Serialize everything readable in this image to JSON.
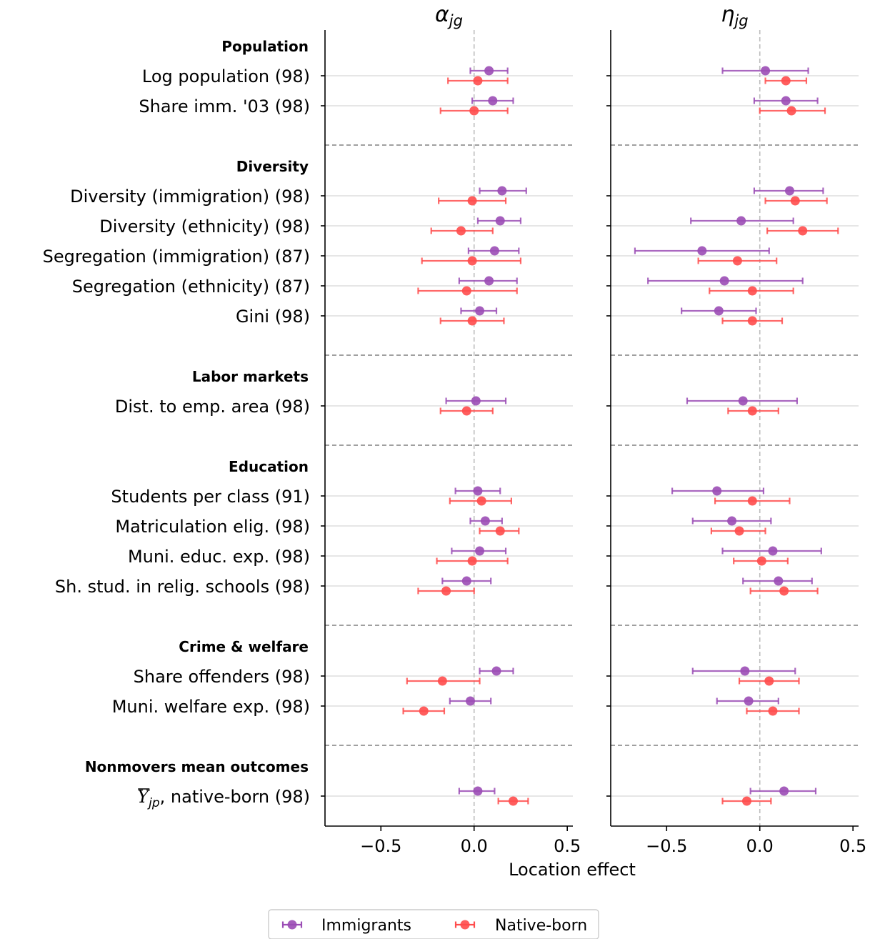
{
  "chart_data": {
    "type": "scatter",
    "subtype": "dot-and-whisker",
    "xlabel": "Location effect",
    "xlim": [
      -0.8,
      0.53
    ],
    "xticks": [
      -0.5,
      0.0,
      0.5
    ],
    "xtick_labels": [
      "−0.5",
      "0.0",
      "0.5"
    ],
    "reference_line_x": 0.0,
    "grid": "horizontal row lines",
    "legend_placement": "bottom-center",
    "panels": [
      {
        "title_base": "α",
        "title_sub": "jg"
      },
      {
        "title_base": "η",
        "title_sub": "jg"
      }
    ],
    "series": [
      {
        "name": "Immigrants",
        "color": "#9b4db5"
      },
      {
        "name": "Native-born",
        "color": "#ff4d4d"
      }
    ],
    "groups": [
      {
        "name": "Population",
        "rows": [
          {
            "label": "Log population (98)",
            "values": [
              [
                [
                  0.08,
                  -0.02,
                  0.18
                ],
                [
                  0.02,
                  -0.14,
                  0.18
                ]
              ],
              [
                [
                  0.03,
                  -0.2,
                  0.26
                ],
                [
                  0.14,
                  0.03,
                  0.25
                ]
              ]
            ]
          },
          {
            "label": "Share imm. '03 (98)",
            "values": [
              [
                [
                  0.1,
                  -0.01,
                  0.21
                ],
                [
                  0.0,
                  -0.18,
                  0.18
                ]
              ],
              [
                [
                  0.14,
                  -0.03,
                  0.31
                ],
                [
                  0.17,
                  0.0,
                  0.35
                ]
              ]
            ]
          }
        ]
      },
      {
        "name": "Diversity",
        "rows": [
          {
            "label": "Diversity (immigration) (98)",
            "values": [
              [
                [
                  0.15,
                  0.03,
                  0.28
                ],
                [
                  -0.01,
                  -0.19,
                  0.17
                ]
              ],
              [
                [
                  0.16,
                  -0.03,
                  0.34
                ],
                [
                  0.19,
                  0.03,
                  0.36
                ]
              ]
            ]
          },
          {
            "label": "Diversity (ethnicity) (98)",
            "values": [
              [
                [
                  0.14,
                  0.02,
                  0.25
                ],
                [
                  -0.07,
                  -0.23,
                  0.1
                ]
              ],
              [
                [
                  -0.1,
                  -0.37,
                  0.18
                ],
                [
                  0.23,
                  0.04,
                  0.42
                ]
              ]
            ]
          },
          {
            "label": "Segregation (immigration) (87)",
            "values": [
              [
                [
                  0.11,
                  -0.03,
                  0.24
                ],
                [
                  -0.01,
                  -0.28,
                  0.25
                ]
              ],
              [
                [
                  -0.31,
                  -0.67,
                  0.05
                ],
                [
                  -0.12,
                  -0.33,
                  0.09
                ]
              ]
            ]
          },
          {
            "label": "Segregation (ethnicity) (87)",
            "values": [
              [
                [
                  0.08,
                  -0.08,
                  0.23
                ],
                [
                  -0.04,
                  -0.3,
                  0.23
                ]
              ],
              [
                [
                  -0.19,
                  -0.6,
                  0.23
                ],
                [
                  -0.04,
                  -0.27,
                  0.18
                ]
              ]
            ]
          },
          {
            "label": "Gini (98)",
            "values": [
              [
                [
                  0.03,
                  -0.07,
                  0.12
                ],
                [
                  -0.01,
                  -0.18,
                  0.16
                ]
              ],
              [
                [
                  -0.22,
                  -0.42,
                  -0.02
                ],
                [
                  -0.04,
                  -0.2,
                  0.12
                ]
              ]
            ]
          }
        ]
      },
      {
        "name": "Labor markets",
        "rows": [
          {
            "label": "Dist. to emp. area (98)",
            "values": [
              [
                [
                  0.01,
                  -0.15,
                  0.17
                ],
                [
                  -0.04,
                  -0.18,
                  0.1
                ]
              ],
              [
                [
                  -0.09,
                  -0.39,
                  0.2
                ],
                [
                  -0.04,
                  -0.17,
                  0.1
                ]
              ]
            ]
          }
        ]
      },
      {
        "name": "Education",
        "rows": [
          {
            "label": "Students per class (91)",
            "values": [
              [
                [
                  0.02,
                  -0.1,
                  0.14
                ],
                [
                  0.04,
                  -0.13,
                  0.2
                ]
              ],
              [
                [
                  -0.23,
                  -0.47,
                  0.02
                ],
                [
                  -0.04,
                  -0.24,
                  0.16
                ]
              ]
            ]
          },
          {
            "label": "Matriculation elig. (98)",
            "values": [
              [
                [
                  0.06,
                  -0.02,
                  0.15
                ],
                [
                  0.14,
                  0.03,
                  0.24
                ]
              ],
              [
                [
                  -0.15,
                  -0.36,
                  0.06
                ],
                [
                  -0.11,
                  -0.26,
                  0.03
                ]
              ]
            ]
          },
          {
            "label": "Muni. educ. exp. (98)",
            "values": [
              [
                [
                  0.03,
                  -0.12,
                  0.17
                ],
                [
                  -0.01,
                  -0.2,
                  0.18
                ]
              ],
              [
                [
                  0.07,
                  -0.2,
                  0.33
                ],
                [
                  0.01,
                  -0.14,
                  0.15
                ]
              ]
            ]
          },
          {
            "label": "Sh. stud. in relig. schools (98)",
            "values": [
              [
                [
                  -0.04,
                  -0.17,
                  0.09
                ],
                [
                  -0.15,
                  -0.3,
                  0.0
                ]
              ],
              [
                [
                  0.1,
                  -0.09,
                  0.28
                ],
                [
                  0.13,
                  -0.05,
                  0.31
                ]
              ]
            ]
          }
        ]
      },
      {
        "name": "Crime & welfare",
        "rows": [
          {
            "label": "Share offenders (98)",
            "values": [
              [
                [
                  0.12,
                  0.03,
                  0.21
                ],
                [
                  -0.17,
                  -0.36,
                  0.03
                ]
              ],
              [
                [
                  -0.08,
                  -0.36,
                  0.19
                ],
                [
                  0.05,
                  -0.11,
                  0.21
                ]
              ]
            ]
          },
          {
            "label": "Muni. welfare exp. (98)",
            "values": [
              [
                [
                  -0.02,
                  -0.13,
                  0.09
                ],
                [
                  -0.27,
                  -0.38,
                  -0.16
                ]
              ],
              [
                [
                  -0.06,
                  -0.23,
                  0.1
                ],
                [
                  0.07,
                  -0.07,
                  0.21
                ]
              ]
            ]
          }
        ]
      },
      {
        "name": "Nonmovers mean outcomes",
        "rows": [
          {
            "label": ", native-born (98)",
            "label_math": {
              "base": "Y",
              "bar": true,
              "sub": "jp"
            },
            "values": [
              [
                [
                  0.02,
                  -0.08,
                  0.11
                ],
                [
                  0.21,
                  0.13,
                  0.29
                ]
              ],
              [
                [
                  0.13,
                  -0.05,
                  0.3
                ],
                [
                  -0.07,
                  -0.2,
                  0.06
                ]
              ]
            ]
          }
        ]
      }
    ]
  }
}
